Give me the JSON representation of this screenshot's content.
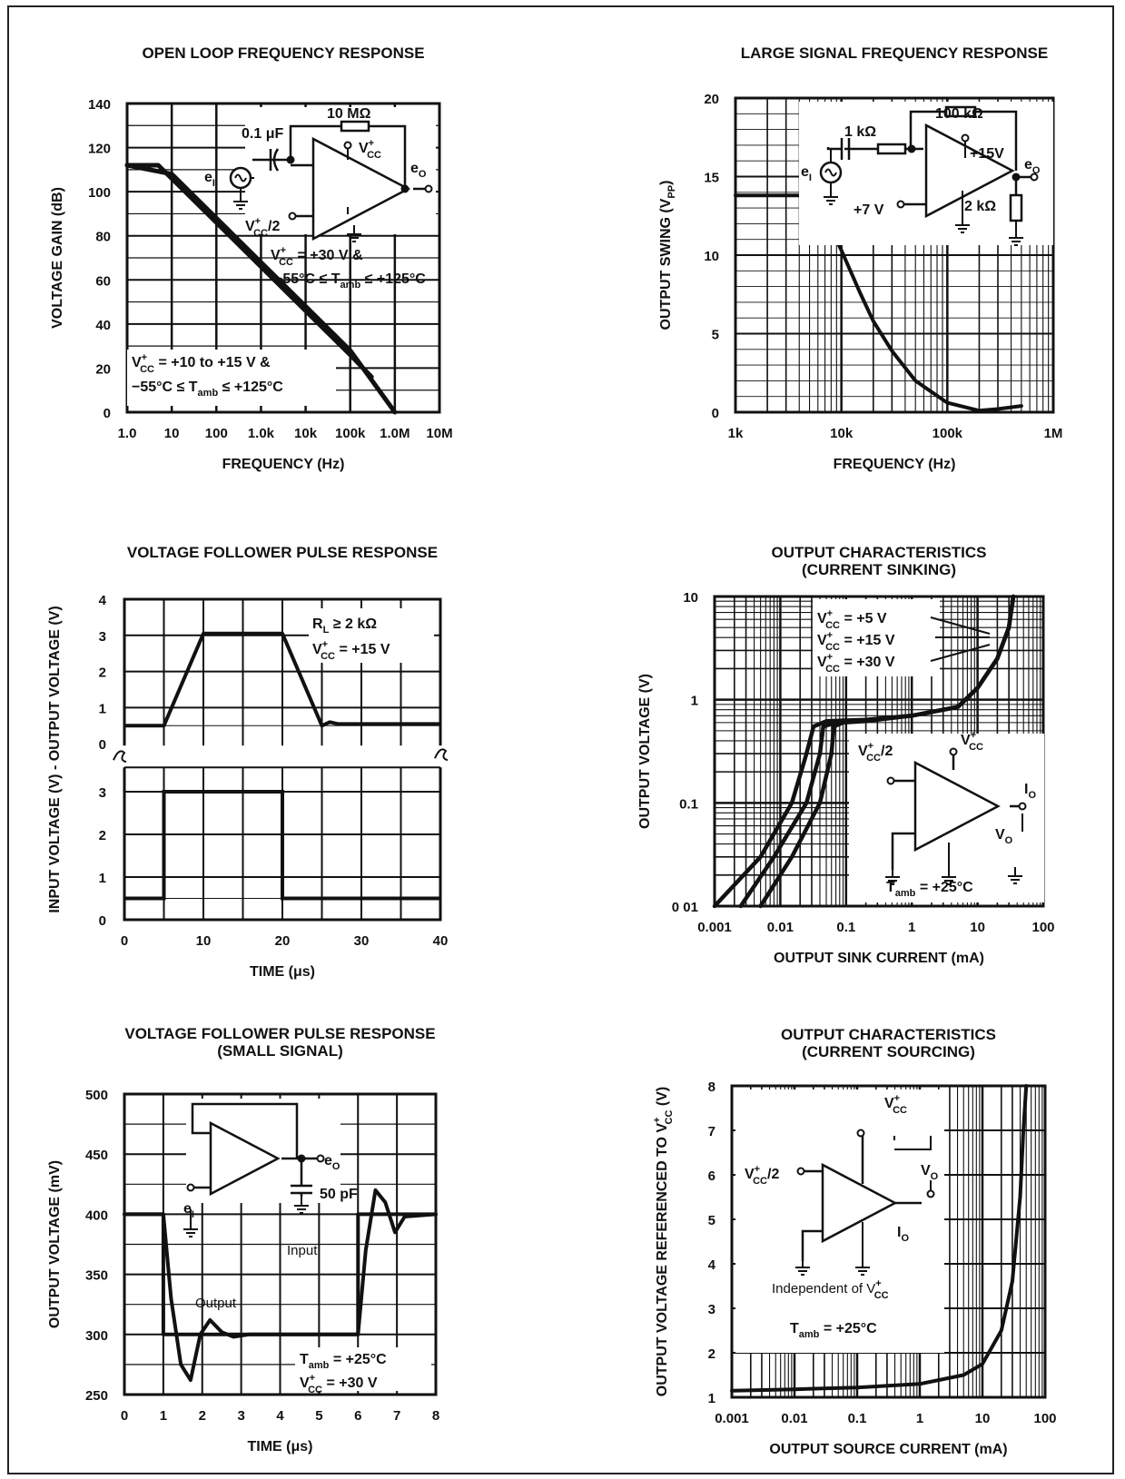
{
  "chart_data": [
    {
      "id": "olfr",
      "type": "line",
      "title": "OPEN LOOP FREQUENCY RESPONSE",
      "xlabel": "FREQUENCY (Hz)",
      "ylabel": "VOLTAGE GAIN (dB)",
      "xscale": "log",
      "xlim": [
        1,
        10000000
      ],
      "ylim": [
        0,
        140
      ],
      "xticks": [
        "1.0",
        "10",
        "100",
        "1.0k",
        "10k",
        "100k",
        "1.0M",
        "10M"
      ],
      "yticks": [
        "0",
        "20",
        "40",
        "60",
        "80",
        "100",
        "120",
        "140"
      ],
      "grid": true,
      "series": [
        {
          "x": [
            1,
            5,
            100,
            1000,
            10000,
            100000,
            300000
          ],
          "y": [
            112,
            112,
            86,
            66,
            46,
            26,
            16
          ]
        },
        {
          "x": [
            1,
            10,
            100,
            1000,
            10000,
            100000,
            1000000
          ],
          "y": [
            112,
            108,
            88,
            68,
            48,
            28,
            0
          ]
        }
      ],
      "annotations": [
        {
          "text": "10 MΩ"
        },
        {
          "text": "0.1 μF"
        },
        {
          "text": "V",
          "sup": "+",
          "sub": "CC"
        },
        {
          "text": "e",
          "sub": "O"
        },
        {
          "text": "e",
          "sub": "I"
        },
        {
          "text": "V",
          "sup": "+",
          "sub": "CC",
          "tail": "/2"
        },
        {
          "text": "V",
          "sup": "+",
          "sub": "CC",
          "tail": " = +30 V &"
        },
        {
          "text": "−55°C ≤ T",
          "sub": "amb",
          "tail": " ≤ +125°C"
        },
        {
          "text": "V",
          "sup": "+",
          "sub": "CC",
          "tail": " = +10 to +15 V &"
        },
        {
          "text": "−55°C ≤ T",
          "sub": "amb",
          "tail": " ≤ +125°C"
        }
      ]
    },
    {
      "id": "lsfr",
      "type": "line",
      "title": "LARGE SIGNAL FREQUENCY RESPONSE",
      "xlabel": "FREQUENCY (Hz)",
      "ylabel": "OUTPUT SWING (V",
      "ylabel_sub": "PP",
      "ylabel_tail": ")",
      "xscale": "log",
      "xlim": [
        1000,
        1000000
      ],
      "ylim": [
        0,
        20
      ],
      "xticks": [
        "1k",
        "10k",
        "100k",
        "1M"
      ],
      "yticks": [
        "0",
        "5",
        "10",
        "15",
        "20"
      ],
      "grid": true,
      "series": [
        {
          "x": [
            1000,
            5000,
            7000,
            10000,
            15000,
            20000,
            30000,
            50000,
            100000,
            200000,
            300000,
            500000
          ],
          "y": [
            13.8,
            13.8,
            12.5,
            10.3,
            7.6,
            5.8,
            3.9,
            2.0,
            0.6,
            0.1,
            0.2,
            0.4
          ]
        }
      ],
      "annotations": [
        {
          "text": "1 kΩ"
        },
        {
          "text": "100 kΩ"
        },
        {
          "text": "+15V"
        },
        {
          "text": "e",
          "sub": "O"
        },
        {
          "text": "e",
          "sub": "I"
        },
        {
          "text": "+7 V"
        },
        {
          "text": "2 kΩ"
        }
      ]
    },
    {
      "id": "vfpr",
      "type": "line",
      "title": "VOLTAGE FOLLOWER PULSE RESPONSE",
      "xlabel": "TIME (μs)",
      "ylabel": "INPUT VOLTAGE (V) - OUTPUT VOLTAGE (V)",
      "xlim": [
        0,
        40
      ],
      "ylim_output": [
        0,
        4
      ],
      "ylim_input": [
        0,
        3
      ],
      "xticks": [
        "0",
        "10",
        "20",
        "30",
        "40"
      ],
      "yticks_output": [
        "0",
        "1",
        "2",
        "3",
        "4"
      ],
      "yticks_input": [
        "0",
        "1",
        "2",
        "3"
      ],
      "grid": true,
      "series": [
        {
          "x": [
            0,
            5,
            10,
            20,
            25,
            26,
            27,
            40
          ],
          "y": [
            0.5,
            0.5,
            3.05,
            3.05,
            0.5,
            0.6,
            0.55,
            0.55
          ]
        },
        {
          "x": [
            0,
            5,
            5,
            20,
            20,
            40
          ],
          "y": [
            0.5,
            0.5,
            3.0,
            3.0,
            0.5,
            0.5
          ]
        }
      ],
      "annotations": [
        {
          "text": "R",
          "sub": "L",
          "tail": " ≥ 2 kΩ"
        },
        {
          "text": "V",
          "sup": "+",
          "sub": "CC",
          "tail": " = +15 V"
        }
      ]
    },
    {
      "id": "ocsink",
      "type": "line",
      "title": "OUTPUT CHARACTERISTICS",
      "subtitle": "(CURRENT SINKING)",
      "xlabel": "OUTPUT SINK CURRENT (mA)",
      "ylabel": "OUTPUT VOLTAGE (V)",
      "xscale": "log",
      "yscale": "log",
      "xlim": [
        0.001,
        100
      ],
      "ylim": [
        0.01,
        10
      ],
      "xticks": [
        "0.001",
        "0.01",
        "0.1",
        "1",
        "10",
        "100"
      ],
      "yticks": [
        "0 01",
        "0.1",
        "1",
        "10"
      ],
      "grid": true,
      "series": [
        {
          "x": [
            0.001,
            0.005,
            0.015,
            0.025,
            0.032,
            0.05,
            0.2,
            1,
            5,
            10,
            20,
            30,
            35
          ],
          "y": [
            0.01,
            0.03,
            0.1,
            0.3,
            0.55,
            0.62,
            0.64,
            0.7,
            0.85,
            1.3,
            2.5,
            5,
            10
          ]
        },
        {
          "x": [
            0.0025,
            0.008,
            0.025,
            0.04,
            0.045,
            0.07,
            0.2,
            1,
            5,
            10,
            20,
            30,
            35
          ],
          "y": [
            0.01,
            0.03,
            0.1,
            0.3,
            0.55,
            0.6,
            0.63,
            0.7,
            0.85,
            1.3,
            2.5,
            5,
            10
          ]
        },
        {
          "x": [
            0.005,
            0.015,
            0.04,
            0.06,
            0.065,
            0.09,
            0.2,
            1,
            5,
            10,
            20,
            30,
            35
          ],
          "y": [
            0.01,
            0.03,
            0.1,
            0.3,
            0.55,
            0.6,
            0.62,
            0.7,
            0.85,
            1.3,
            2.5,
            5,
            10
          ]
        }
      ],
      "annotations": [
        {
          "text": "V",
          "sup": "+",
          "sub": "CC",
          "tail": " = +5 V"
        },
        {
          "text": "V",
          "sup": "+",
          "sub": "CC",
          "tail": " = +15 V"
        },
        {
          "text": "V",
          "sup": "+",
          "sub": "CC",
          "tail": " = +30 V"
        },
        {
          "text": "V",
          "sup": "+",
          "sub": "CC",
          "tail": "/2"
        },
        {
          "text": "V",
          "sup": "+",
          "sub": "CC"
        },
        {
          "text": "I",
          "sub": "O"
        },
        {
          "text": "V",
          "sub": "O"
        },
        {
          "text": "T",
          "sub": "amb",
          "tail": " = +25°C"
        }
      ]
    },
    {
      "id": "vfprss",
      "type": "line",
      "title": "VOLTAGE FOLLOWER PULSE RESPONSE",
      "subtitle": "(SMALL SIGNAL)",
      "xlabel": "TIME (μs)",
      "ylabel": "OUTPUT VOLTAGE (mV)",
      "xlim": [
        0,
        8
      ],
      "ylim": [
        250,
        500
      ],
      "xticks": [
        "0",
        "1",
        "2",
        "3",
        "4",
        "5",
        "6",
        "7",
        "8"
      ],
      "yticks": [
        "250",
        "300",
        "350",
        "400",
        "450",
        "500"
      ],
      "grid": true,
      "series": [
        {
          "name": "Output",
          "x": [
            0,
            1.0,
            1.2,
            1.45,
            1.7,
            1.95,
            2.2,
            2.5,
            2.8,
            3.2,
            6.0,
            6.2,
            6.45,
            6.7,
            6.95,
            7.2,
            8
          ],
          "y": [
            400,
            400,
            330,
            275,
            262,
            300,
            312,
            302,
            298,
            300,
            300,
            370,
            420,
            410,
            385,
            398,
            400
          ]
        },
        {
          "name": "Input",
          "x": [
            0,
            1,
            1,
            6,
            6,
            8
          ],
          "y": [
            400,
            400,
            300,
            300,
            400,
            400
          ]
        }
      ],
      "annotations": [
        {
          "text": "e",
          "sub": "O"
        },
        {
          "text": "e",
          "sub": "I"
        },
        {
          "text": "50 pF"
        },
        {
          "text": "Input"
        },
        {
          "text": "Output"
        },
        {
          "text": "T",
          "sub": "amb",
          "tail": " = +25°C"
        },
        {
          "text": "V",
          "sup": "+",
          "sub": "CC",
          "tail": " = +30 V"
        }
      ]
    },
    {
      "id": "ocsource",
      "type": "line",
      "title": "OUTPUT CHARACTERISTICS",
      "subtitle": "(CURRENT SOURCING)",
      "xlabel": "OUTPUT SOURCE CURRENT (mA)",
      "ylabel": "OUTPUT VOLTAGE REFERENCED TO V",
      "ylabel_sup": "+",
      "ylabel_sub": "CC",
      "ylabel_tail": " (V)",
      "xscale": "log",
      "xlim": [
        0.001,
        100
      ],
      "ylim": [
        1,
        8
      ],
      "xticks": [
        "0.001",
        "0.01",
        "0.1",
        "1",
        "10",
        "100"
      ],
      "yticks": [
        "1",
        "2",
        "3",
        "4",
        "5",
        "6",
        "7",
        "8"
      ],
      "grid": true,
      "series": [
        {
          "x": [
            0.001,
            0.01,
            0.1,
            1,
            5,
            10,
            20,
            30,
            40,
            45,
            50
          ],
          "y": [
            1.15,
            1.18,
            1.22,
            1.3,
            1.5,
            1.75,
            2.5,
            3.6,
            5.5,
            7,
            8
          ]
        }
      ],
      "annotations": [
        {
          "text": "V",
          "sup": "+",
          "sub": "CC"
        },
        {
          "text": "V",
          "sup": "+",
          "sub": "CC",
          "tail": "/2"
        },
        {
          "text": "V",
          "sub": "O"
        },
        {
          "text": "I",
          "sub": "O"
        },
        {
          "text": "Independent of V",
          "sup": "+",
          "sub": "CC"
        },
        {
          "text": "T",
          "sub": "amb",
          "tail": " = +25°C"
        }
      ]
    }
  ]
}
